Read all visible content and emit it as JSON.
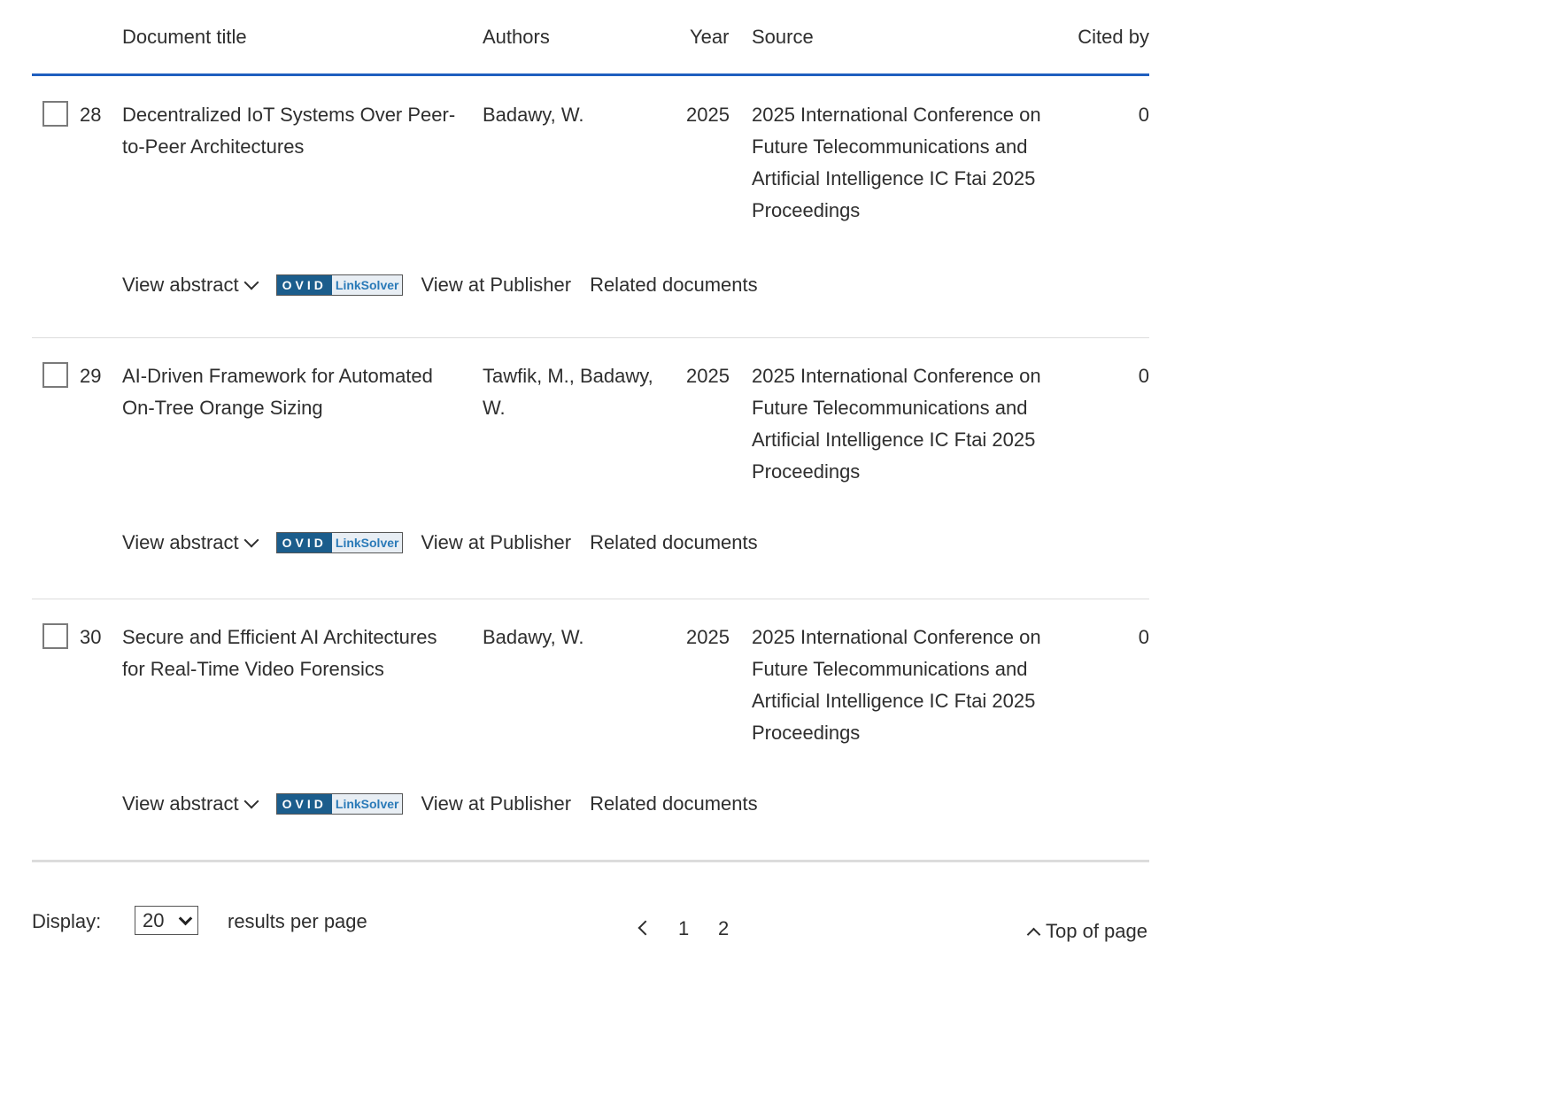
{
  "header": {
    "title": "Document title",
    "authors": "Authors",
    "year": "Year",
    "source": "Source",
    "cited_by": "Cited by"
  },
  "rows": [
    {
      "num": "28",
      "title": "Decentralized IoT Systems Over Peer-to-Peer Architectures",
      "authors": "Badawy, W.",
      "year": "2025",
      "source": "2025 International Conference on Future Telecommunications and Artificial Intelligence IC Ftai 2025 Proceedings",
      "cited": "0"
    },
    {
      "num": "29",
      "title": "AI-Driven Framework for Automated On-Tree Orange Sizing",
      "authors": "Tawfik, M., Badawy, W.",
      "year": "2025",
      "source": "2025 International Conference on Future Telecommunications and Artificial Intelligence IC Ftai 2025 Proceedings",
      "cited": "0"
    },
    {
      "num": "30",
      "title": "Secure and Efficient AI Architectures for Real-Time Video Forensics",
      "authors": "Badawy, W.",
      "year": "2025",
      "source": "2025 International Conference on Future Telecommunications and Artificial Intelligence IC Ftai 2025 Proceedings",
      "cited": "0"
    }
  ],
  "actions": {
    "view_abstract": "View abstract",
    "ovid": "OVID",
    "linksolver": "LinkSolver",
    "view_publisher": "View at Publisher",
    "related": "Related documents"
  },
  "footer": {
    "display_label": "Display:",
    "per_page": "20",
    "results_label": "results per page",
    "pages": [
      "1",
      "2"
    ],
    "top_of_page": "Top of page"
  },
  "colors": {
    "accent_line": "#1f5fbf",
    "ovid_blue": "#1b5d8c"
  }
}
